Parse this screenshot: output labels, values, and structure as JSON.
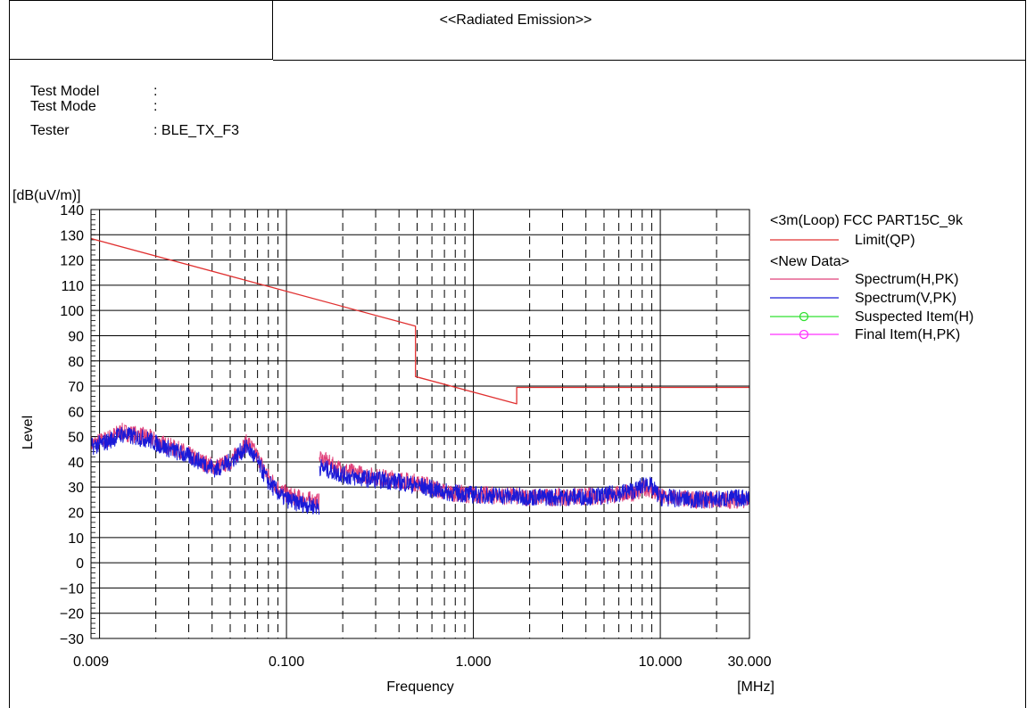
{
  "header": {
    "title": "<<Radiated Emission>>",
    "info": [
      {
        "label": "Test Model",
        "value": ":"
      },
      {
        "label": "Test Mode",
        "value": ":"
      },
      {
        "label": "Tester",
        "value": ": BLE_TX_F3"
      }
    ]
  },
  "chart_data": {
    "type": "line",
    "ylabel_unit": "[dB(uV/m)]",
    "ylabel": "Level",
    "xlabel": "Frequency",
    "xunit": "[MHz]",
    "x_scale": "log",
    "xlim": [
      0.009,
      30
    ],
    "ylim": [
      -30,
      140
    ],
    "y_ticks": [
      140,
      130,
      120,
      110,
      100,
      90,
      80,
      70,
      60,
      50,
      40,
      30,
      20,
      10,
      0,
      -10,
      -20,
      -30
    ],
    "x_ticks": [
      {
        "value": 0.009,
        "label": "0.009"
      },
      {
        "value": 0.1,
        "label": "0.100"
      },
      {
        "value": 1,
        "label": "1.000"
      },
      {
        "value": 10,
        "label": "10.000"
      },
      {
        "value": 30,
        "label": "30.000"
      }
    ],
    "grid": true,
    "legend": {
      "position": "right",
      "entries": [
        {
          "text": "<3m(Loop) FCC PART15C_9k",
          "kind": "header"
        },
        {
          "text": "Limit(QP)",
          "kind": "line",
          "color": "#e03030"
        },
        {
          "text": "<New Data>",
          "kind": "header"
        },
        {
          "text": "Spectrum(H,PK)",
          "kind": "line",
          "color": "#e0407a"
        },
        {
          "text": "Spectrum(V,PK)",
          "kind": "line",
          "color": "#1a1ad8"
        },
        {
          "text": "Suspected Item(H)",
          "kind": "marker",
          "color": "#30e030"
        },
        {
          "text": "Final Item(H,PK)",
          "kind": "marker",
          "color": "#ff30ff"
        }
      ]
    },
    "series": [
      {
        "name": "Limit(QP)",
        "color": "#e03030",
        "points": [
          [
            0.009,
            128.5
          ],
          [
            0.49,
            93.8
          ],
          [
            0.49,
            73.8
          ],
          [
            1.705,
            63.0
          ],
          [
            1.705,
            69.5
          ],
          [
            30,
            69.5
          ]
        ]
      },
      {
        "name": "Spectrum(H,PK)",
        "color": "#e0407a",
        "noise": 3.5,
        "points": [
          [
            0.009,
            47
          ],
          [
            0.011,
            49
          ],
          [
            0.013,
            52
          ],
          [
            0.015,
            51
          ],
          [
            0.018,
            50
          ],
          [
            0.022,
            47
          ],
          [
            0.028,
            44
          ],
          [
            0.035,
            40
          ],
          [
            0.042,
            38
          ],
          [
            0.05,
            40
          ],
          [
            0.057,
            45
          ],
          [
            0.062,
            48
          ],
          [
            0.07,
            42
          ],
          [
            0.08,
            34
          ],
          [
            0.095,
            28
          ],
          [
            0.11,
            26
          ],
          [
            0.13,
            25
          ],
          [
            0.15,
            24
          ],
          null,
          [
            0.15,
            42
          ],
          [
            0.18,
            38
          ],
          [
            0.22,
            36
          ],
          [
            0.3,
            34
          ],
          [
            0.4,
            33
          ],
          [
            0.55,
            31
          ],
          [
            0.7,
            28
          ],
          [
            1.0,
            27
          ],
          [
            1.5,
            26.5
          ],
          [
            2.0,
            26
          ],
          [
            3.0,
            26
          ],
          [
            5.0,
            26.5
          ],
          [
            7.5,
            28
          ],
          [
            8.5,
            30
          ],
          [
            10.0,
            26
          ],
          [
            15.0,
            25
          ],
          [
            20.0,
            25
          ],
          [
            30.0,
            25
          ]
        ]
      },
      {
        "name": "Spectrum(V,PK)",
        "color": "#1a1ad8",
        "noise": 3.5,
        "points": [
          [
            0.009,
            46
          ],
          [
            0.011,
            48
          ],
          [
            0.013,
            51
          ],
          [
            0.015,
            50
          ],
          [
            0.018,
            49
          ],
          [
            0.022,
            46
          ],
          [
            0.028,
            43
          ],
          [
            0.035,
            40
          ],
          [
            0.042,
            37
          ],
          [
            0.05,
            40
          ],
          [
            0.057,
            44
          ],
          [
            0.062,
            46
          ],
          [
            0.07,
            40
          ],
          [
            0.08,
            32
          ],
          [
            0.095,
            26
          ],
          [
            0.11,
            24
          ],
          [
            0.13,
            23
          ],
          [
            0.15,
            22
          ],
          null,
          [
            0.15,
            38
          ],
          [
            0.18,
            36
          ],
          [
            0.22,
            34
          ],
          [
            0.3,
            33
          ],
          [
            0.4,
            32
          ],
          [
            0.55,
            30
          ],
          [
            0.7,
            28
          ],
          [
            1.0,
            27
          ],
          [
            1.5,
            26.5
          ],
          [
            2.0,
            26
          ],
          [
            3.0,
            26
          ],
          [
            5.0,
            26.5
          ],
          [
            7.5,
            29
          ],
          [
            8.5,
            32
          ],
          [
            10.0,
            26
          ],
          [
            15.0,
            25
          ],
          [
            20.0,
            25
          ],
          [
            30.0,
            26
          ]
        ]
      }
    ]
  }
}
